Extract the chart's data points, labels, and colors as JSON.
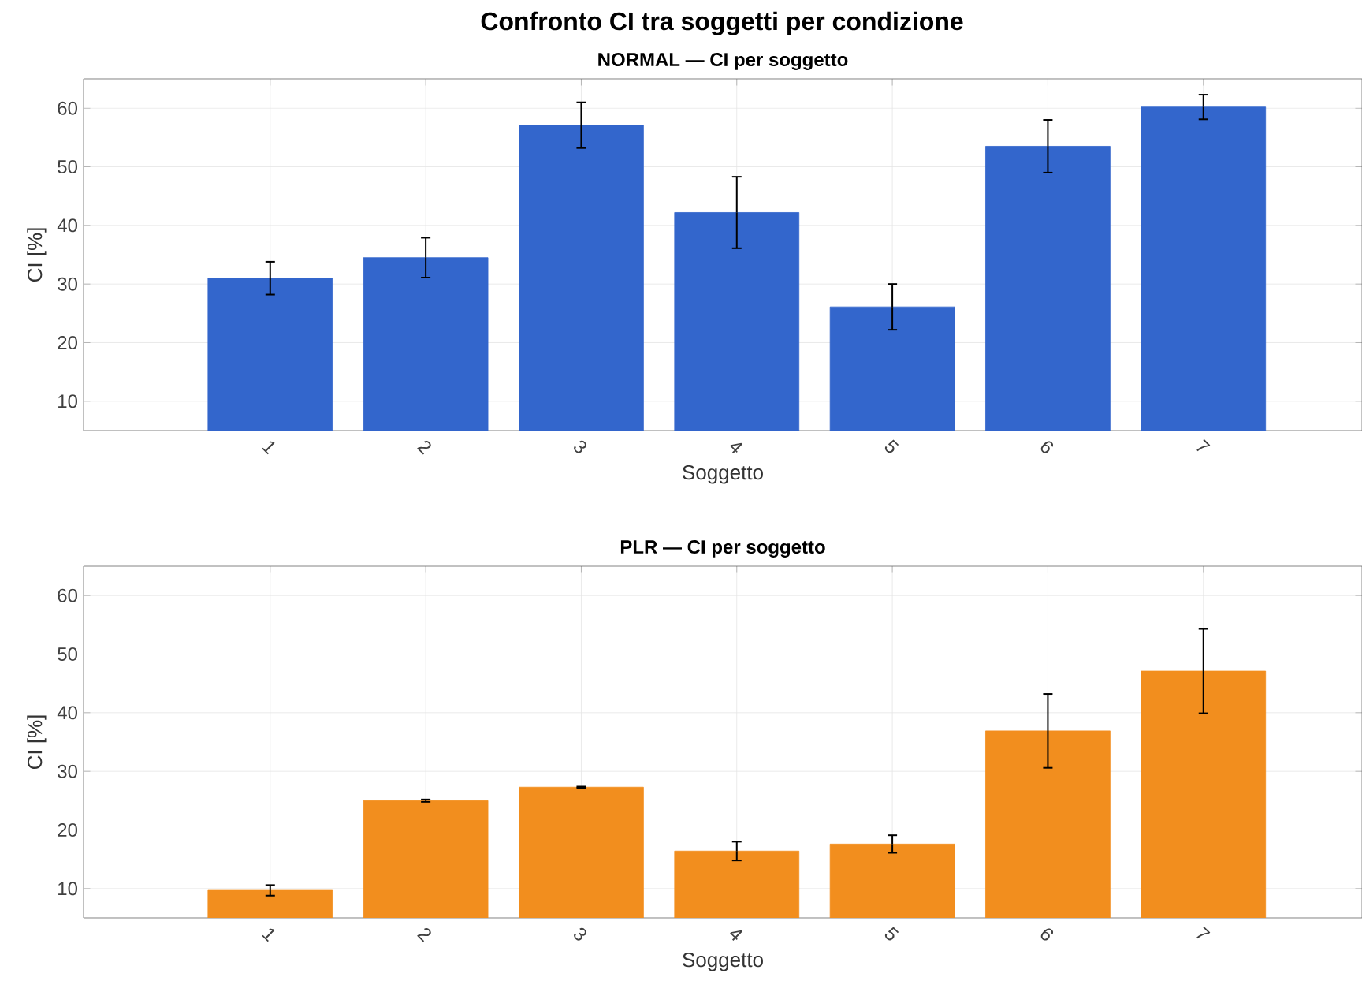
{
  "chart_data": [
    {
      "type": "bar",
      "title": "Confronto CI tra soggetti per condizione",
      "subtitle": "NORMAL — CI per soggetto",
      "xlabel": "Soggetto",
      "ylabel": "CI [%]",
      "categories": [
        "1",
        "2",
        "3",
        "4",
        "5",
        "6",
        "7"
      ],
      "values": [
        31.0,
        34.5,
        57.1,
        42.2,
        26.1,
        53.5,
        60.2
      ],
      "errors": [
        2.8,
        3.4,
        3.9,
        6.1,
        3.9,
        4.5,
        2.1
      ],
      "color": "#3366cc",
      "ylim": [
        5,
        65
      ],
      "yticks": [
        10,
        20,
        30,
        40,
        50,
        60
      ],
      "grid": true
    },
    {
      "type": "bar",
      "title": "PLR — CI per soggetto",
      "xlabel": "Soggetto",
      "ylabel": "CI [%]",
      "categories": [
        "1",
        "2",
        "3",
        "4",
        "5",
        "6",
        "7"
      ],
      "values": [
        9.7,
        25.0,
        27.3,
        16.4,
        17.6,
        36.9,
        47.1
      ],
      "errors": [
        0.9,
        0.2,
        0.1,
        1.6,
        1.5,
        6.3,
        7.2
      ],
      "color": "#f28e1e",
      "ylim": [
        5,
        65
      ],
      "yticks": [
        10,
        20,
        30,
        40,
        50,
        60
      ],
      "grid": true
    }
  ]
}
